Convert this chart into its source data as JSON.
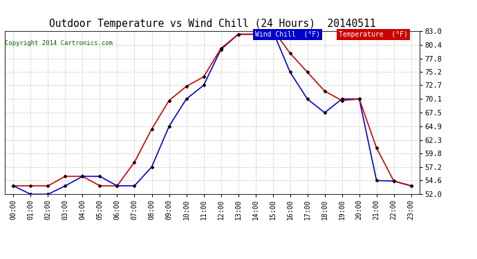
{
  "title": "Outdoor Temperature vs Wind Chill (24 Hours)  20140511",
  "copyright": "Copyright 2014 Cartronics.com",
  "hours": [
    "00:00",
    "01:00",
    "02:00",
    "03:00",
    "04:00",
    "05:00",
    "06:00",
    "07:00",
    "08:00",
    "09:00",
    "10:00",
    "11:00",
    "12:00",
    "13:00",
    "14:00",
    "15:00",
    "16:00",
    "17:00",
    "18:00",
    "19:00",
    "20:00",
    "21:00",
    "22:00",
    "23:00"
  ],
  "temperature": [
    53.6,
    53.6,
    53.6,
    55.4,
    55.4,
    53.6,
    53.6,
    58.1,
    64.4,
    69.8,
    72.5,
    74.3,
    79.7,
    82.4,
    82.4,
    83.3,
    78.8,
    75.2,
    71.6,
    69.8,
    70.1,
    60.8,
    54.5,
    53.6
  ],
  "wind_chill": [
    53.6,
    52.0,
    52.0,
    53.6,
    55.4,
    55.4,
    53.6,
    53.6,
    57.2,
    64.9,
    70.1,
    72.7,
    79.5,
    82.4,
    82.4,
    83.0,
    75.2,
    70.1,
    67.5,
    70.1,
    70.1,
    54.6,
    54.5,
    53.6
  ],
  "temp_color": "#cc0000",
  "wind_chill_color": "#0000cc",
  "ylim_min": 52.0,
  "ylim_max": 83.0,
  "yticks": [
    52.0,
    54.6,
    57.2,
    59.8,
    62.3,
    64.9,
    67.5,
    70.1,
    72.7,
    75.2,
    77.8,
    80.4,
    83.0
  ],
  "bg_color": "#ffffff",
  "grid_color": "#cccccc",
  "legend_wind_chill_bg": "#0000cc",
  "legend_temp_bg": "#cc0000",
  "legend_text_wind": "Wind Chill  (°F)",
  "legend_text_temp": "Temperature  (°F)"
}
